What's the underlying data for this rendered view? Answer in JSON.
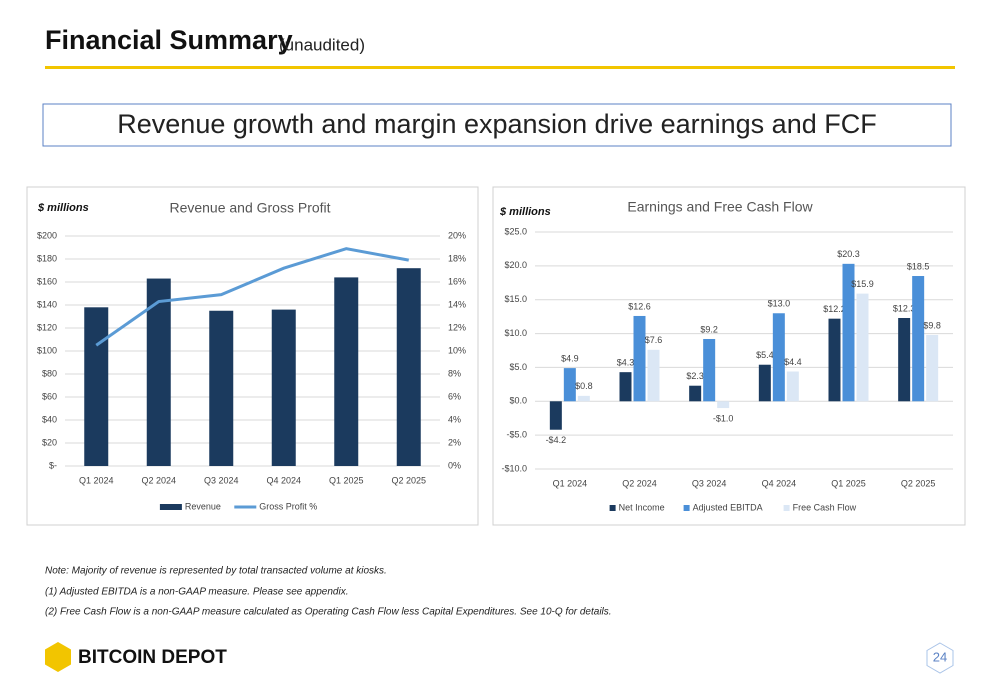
{
  "header": {
    "title": "Financial Summary",
    "subtitle": "(unaudited)"
  },
  "headline": "Revenue growth and margin expansion drive earnings and FCF",
  "chart_data": [
    {
      "type": "bar",
      "title": "Revenue and Gross Profit",
      "y_label": "$ millions",
      "categories": [
        "Q1 2024",
        "Q2 2024",
        "Q3 2024",
        "Q4 2024",
        "Q1 2025",
        "Q2 2025"
      ],
      "series": [
        {
          "name": "Revenue",
          "color": "#1b3a5e",
          "values": [
            138,
            163,
            135,
            136,
            164,
            172
          ]
        },
        {
          "name": "Gross Profit %",
          "type": "line",
          "axis": "y2",
          "color": "#5b9bd5",
          "values": [
            10.5,
            14.3,
            14.9,
            17.2,
            18.9,
            17.9
          ]
        }
      ],
      "ylim": [
        0,
        200
      ],
      "yticks": [
        {
          "value": 0,
          "label": "$-"
        },
        {
          "value": 20,
          "label": "$20"
        },
        {
          "value": 40,
          "label": "$40"
        },
        {
          "value": 60,
          "label": "$60"
        },
        {
          "value": 80,
          "label": "$80"
        },
        {
          "value": 100,
          "label": "$100"
        },
        {
          "value": 120,
          "label": "$120"
        },
        {
          "value": 140,
          "label": "$140"
        },
        {
          "value": 160,
          "label": "$160"
        },
        {
          "value": 180,
          "label": "$180"
        },
        {
          "value": 200,
          "label": "$200"
        }
      ],
      "y2lim": [
        0,
        20
      ],
      "y2ticks": [
        {
          "value": 0,
          "label": "0%"
        },
        {
          "value": 2,
          "label": "2%"
        },
        {
          "value": 4,
          "label": "4%"
        },
        {
          "value": 6,
          "label": "6%"
        },
        {
          "value": 8,
          "label": "8%"
        },
        {
          "value": 10,
          "label": "10%"
        },
        {
          "value": 12,
          "label": "12%"
        },
        {
          "value": 14,
          "label": "14%"
        },
        {
          "value": 16,
          "label": "16%"
        },
        {
          "value": 18,
          "label": "18%"
        },
        {
          "value": 20,
          "label": "20%"
        }
      ],
      "grid": true,
      "legend": "bottom"
    },
    {
      "type": "bar",
      "title": "Earnings and Free Cash Flow",
      "y_label": "$ millions",
      "categories": [
        "Q1 2024",
        "Q2 2024",
        "Q3 2024",
        "Q4 2024",
        "Q1 2025",
        "Q2 2025"
      ],
      "series": [
        {
          "name": "Net Income",
          "color": "#1b3a5e",
          "values": [
            -4.2,
            4.3,
            2.3,
            5.4,
            12.2,
            12.3
          ],
          "value_labels": [
            "-$4.2",
            "$4.3",
            "$2.3",
            "$5.4",
            "$12.2",
            "$12.3"
          ]
        },
        {
          "name": "Adjusted EBITDA",
          "color": "#4a8fd8",
          "values": [
            4.9,
            12.6,
            9.2,
            13.0,
            20.3,
            18.5
          ],
          "value_labels": [
            "$4.9",
            "$12.6",
            "$9.2",
            "$13.0",
            "$20.3",
            "$18.5"
          ]
        },
        {
          "name": "Free Cash Flow",
          "color": "#dbe7f5",
          "values": [
            0.8,
            7.6,
            -1.0,
            4.4,
            15.9,
            9.8
          ],
          "value_labels": [
            "$0.8",
            "$7.6",
            "-$1.0",
            "$4.4",
            "$15.9",
            "$9.8"
          ]
        }
      ],
      "ylim": [
        -10,
        25
      ],
      "yticks": [
        {
          "value": -10,
          "label": "-$10.0"
        },
        {
          "value": -5,
          "label": "-$5.0"
        },
        {
          "value": 0,
          "label": "$0.0"
        },
        {
          "value": 5,
          "label": "$5.0"
        },
        {
          "value": 10,
          "label": "$10.0"
        },
        {
          "value": 15,
          "label": "$15.0"
        },
        {
          "value": 20,
          "label": "$20.0"
        },
        {
          "value": 25,
          "label": "$25.0"
        }
      ],
      "grid": true,
      "legend": "bottom"
    }
  ],
  "notes": [
    "Note: Majority of revenue is represented by total transacted volume at kiosks.",
    "(1)   Adjusted EBITDA is a non-GAAP measure. Please see appendix.",
    "(2)   Free Cash Flow is a non-GAAP measure calculated as Operating Cash Flow less Capital Expenditures.  See 10-Q for details."
  ],
  "logo": "BITCOIN DEPOT",
  "page_number": "24"
}
